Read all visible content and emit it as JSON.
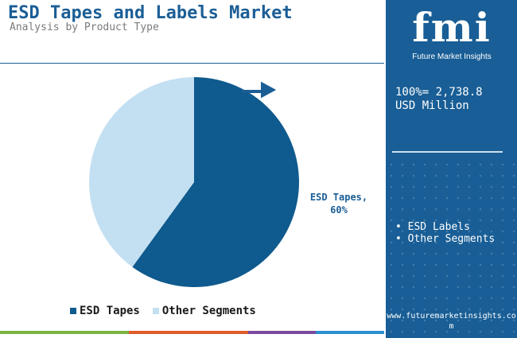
{
  "header": {
    "title": "ESD Tapes and Labels Market",
    "subtitle": "Analysis by Product Type"
  },
  "chart_data": {
    "type": "pie",
    "title": "ESD Tapes and Labels Market",
    "subtitle": "Analysis by Product Type",
    "slices": [
      {
        "label": "ESD Tapes",
        "value": 60,
        "color": "#0f5a8e"
      },
      {
        "label": "Other Segments",
        "value": 40,
        "color": "#c3e0f2"
      }
    ],
    "data_labels": [
      {
        "text_line1": "ESD Tapes,",
        "text_line2": "60%"
      }
    ],
    "legend": {
      "placement": "bottom",
      "entries": [
        {
          "label": "ESD Tapes",
          "color": "#0f5a8e"
        },
        {
          "label": "Other Segments",
          "color": "#c3e0f2"
        }
      ]
    }
  },
  "side_panel": {
    "logo": "fmi",
    "logo_caption": "Future Market Insights",
    "total_line1": "100%= 2,738.8",
    "total_line2": "USD Million",
    "list_items": [
      "• ESD Labels",
      "• Other Segments"
    ],
    "website": "www.futuremarketinsights.com"
  },
  "colors": {
    "primary": "#1b5e96",
    "panel": "#195e96",
    "bottom_bar": [
      "#7bb241",
      "#e05a2a",
      "#7b4a9e",
      "#2a8fd0"
    ]
  }
}
